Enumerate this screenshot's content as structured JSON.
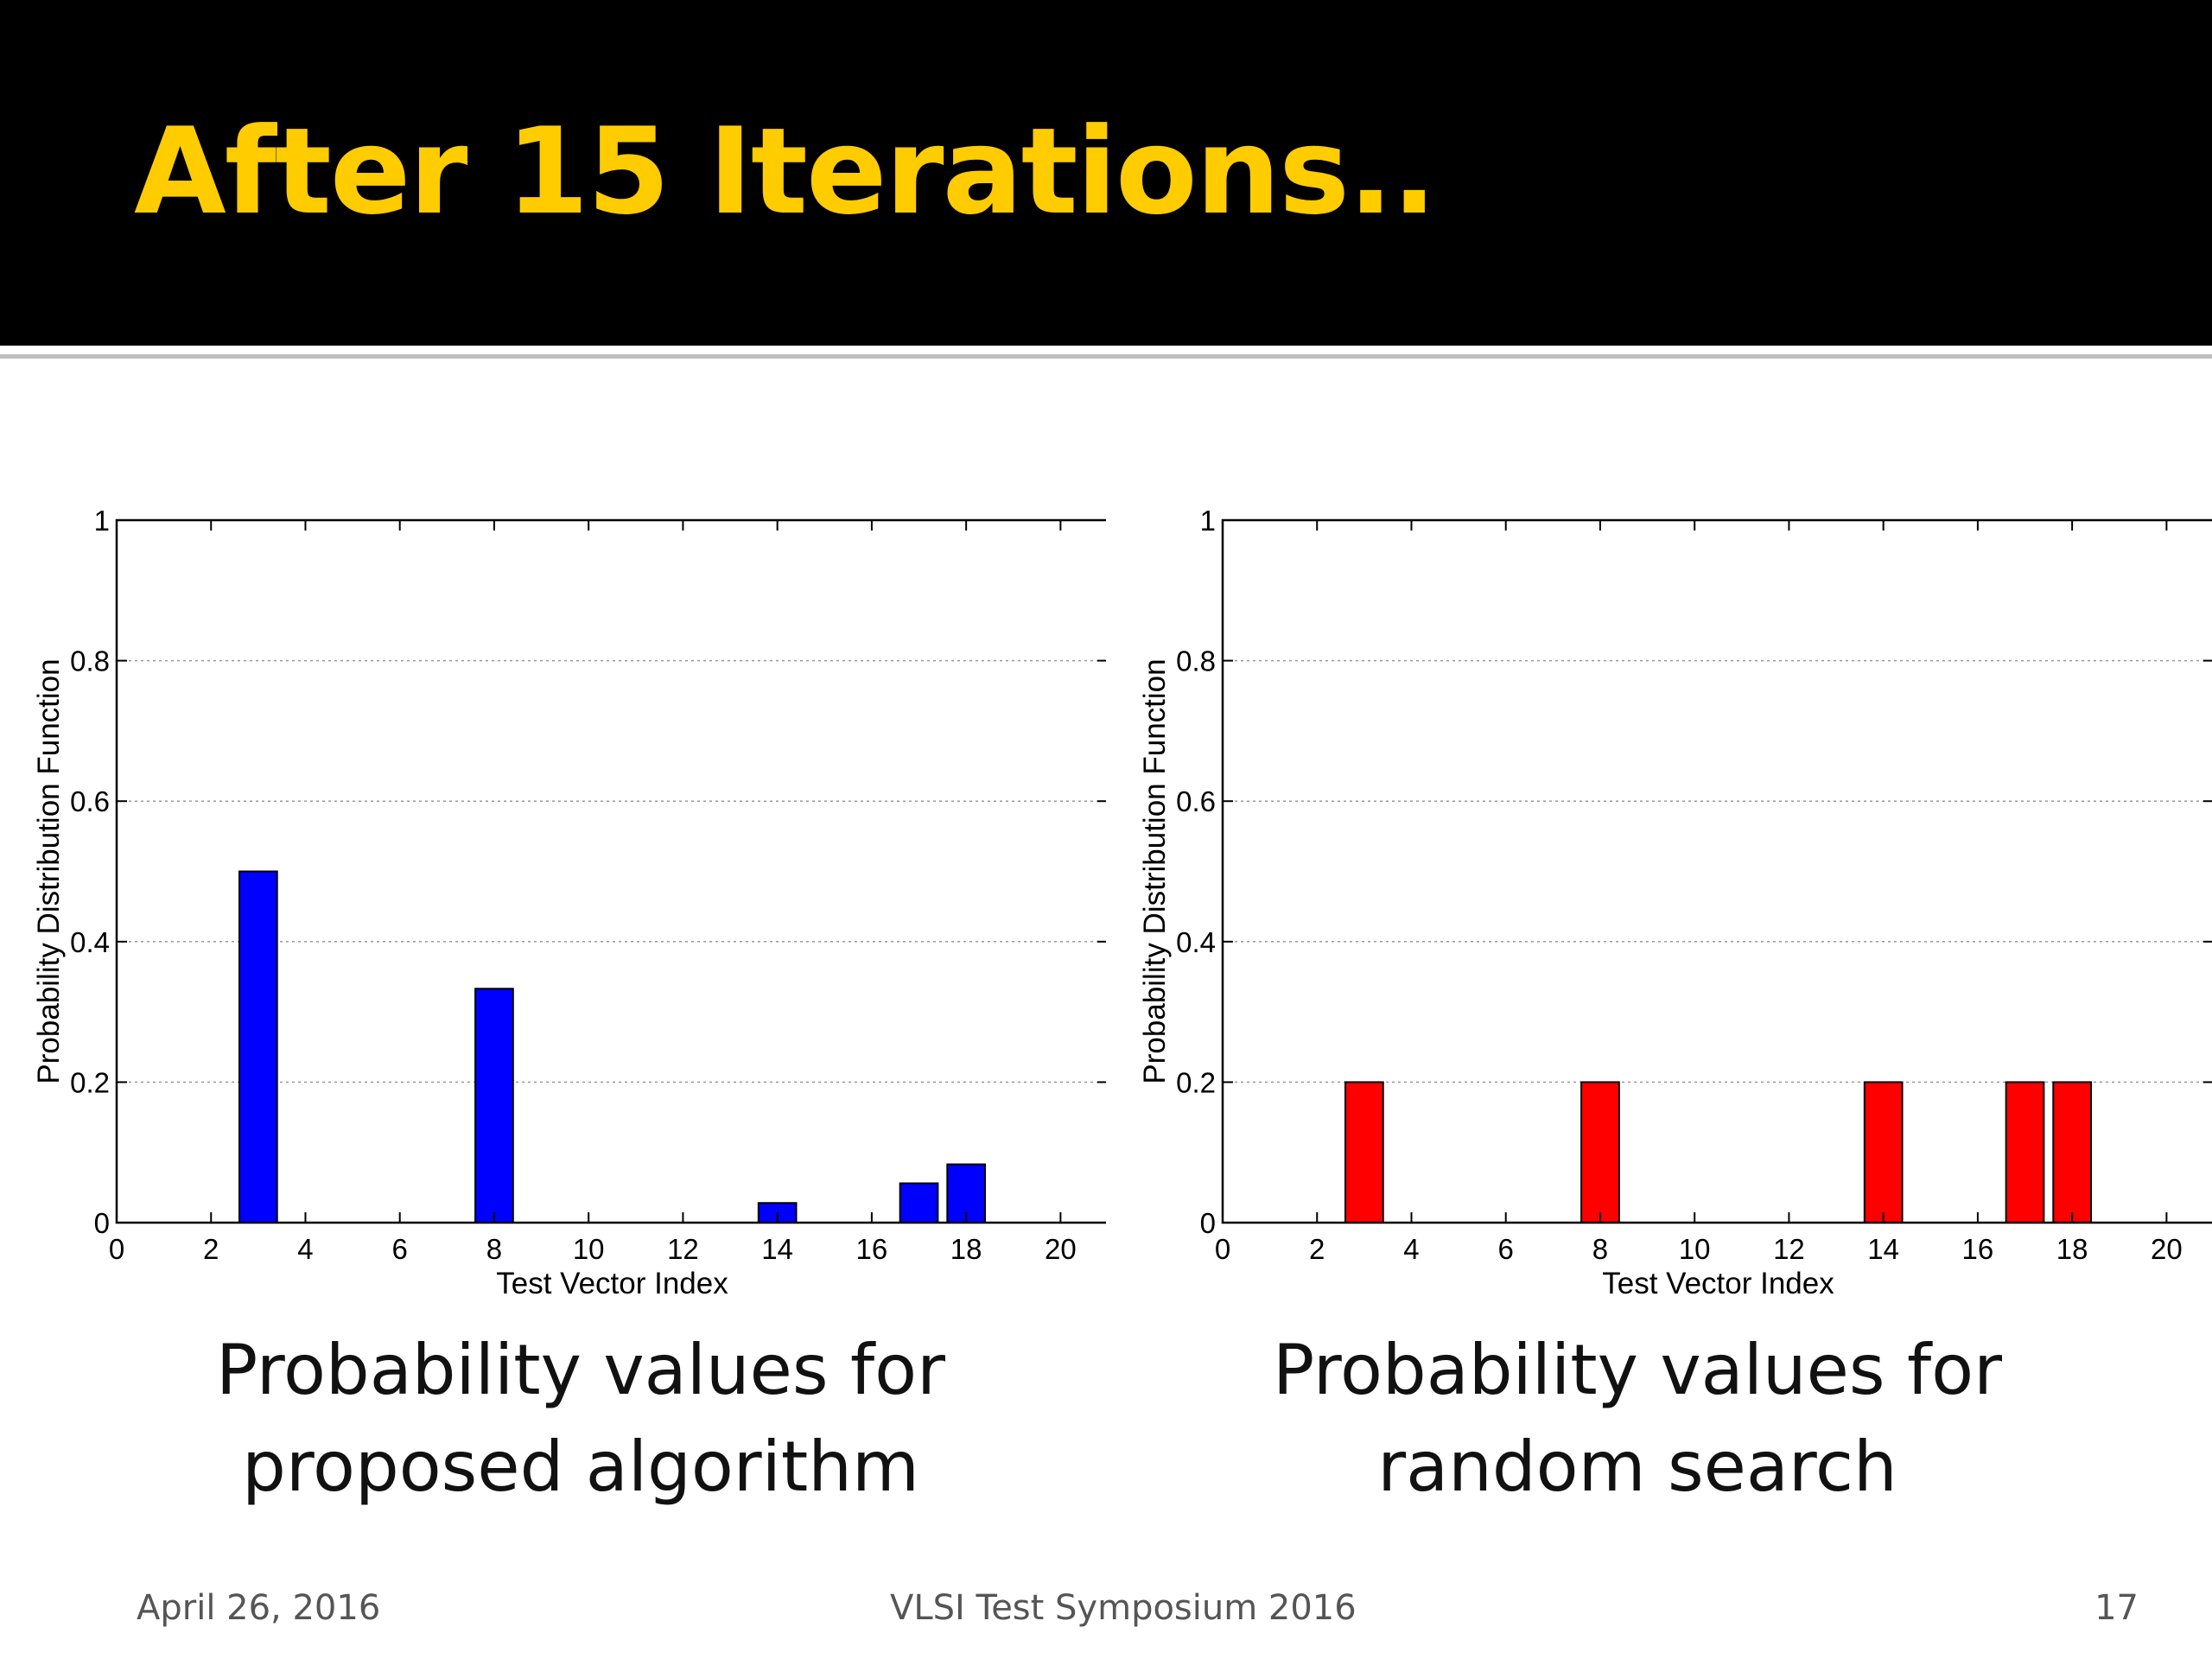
{
  "slide": {
    "title": "After 15 Iterations..",
    "captions": {
      "left": [
        "Probability values for",
        "proposed algorithm"
      ],
      "right": [
        "Probability values for",
        "random search"
      ]
    },
    "footer": {
      "date": "April 26, 2016",
      "event": "VLSI Test Symposium 2016",
      "page": "17"
    }
  },
  "colors": {
    "header_bg": "#000000",
    "title": "#ffcc00",
    "bar_left": "#0000ff",
    "bar_right": "#ff0000"
  },
  "chart_data": [
    {
      "type": "bar",
      "title": "",
      "xlabel": "Test Vector Index",
      "ylabel": "Probability Distribution Function",
      "xlim": [
        0,
        21
      ],
      "ylim": [
        0,
        1
      ],
      "xticks": [
        0,
        2,
        4,
        6,
        8,
        10,
        12,
        14,
        16,
        18,
        20
      ],
      "yticks": [
        0,
        0.2,
        0.4,
        0.6,
        0.8,
        1
      ],
      "ytick_labels": [
        "0",
        "0.2",
        "0.4",
        "0.6",
        "0.8",
        "1"
      ],
      "grid": "horizontal-dotted",
      "x": [
        3,
        8,
        14,
        17,
        18
      ],
      "values": [
        0.5,
        0.333,
        0.028,
        0.056,
        0.083
      ],
      "color": "#0000ff"
    },
    {
      "type": "bar",
      "title": "",
      "xlabel": "Test Vector Index",
      "ylabel": "Probability Distribution Function",
      "xlim": [
        0,
        21
      ],
      "ylim": [
        0,
        1
      ],
      "xticks": [
        0,
        2,
        4,
        6,
        8,
        10,
        12,
        14,
        16,
        18,
        20
      ],
      "yticks": [
        0,
        0.2,
        0.4,
        0.6,
        0.8,
        1
      ],
      "ytick_labels": [
        "0",
        "0.2",
        "0.4",
        "0.6",
        "0.8",
        "1"
      ],
      "grid": "horizontal-dotted",
      "x": [
        3,
        8,
        14,
        17,
        18
      ],
      "values": [
        0.2,
        0.2,
        0.2,
        0.2,
        0.2
      ],
      "color": "#ff0000"
    }
  ]
}
